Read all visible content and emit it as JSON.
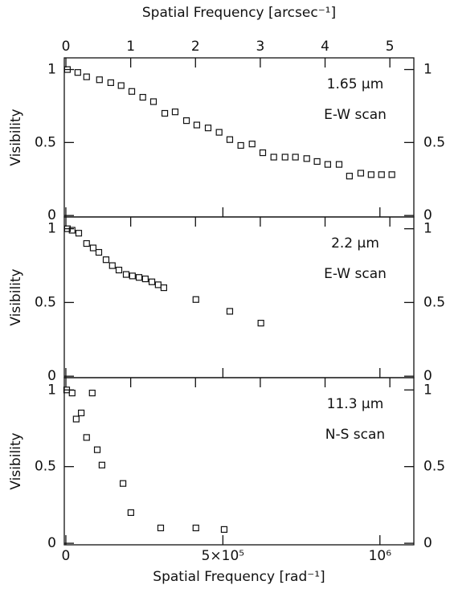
{
  "chart_data": [
    {
      "type": "scatter",
      "y_label": "Visibility",
      "annotations": [
        "1.65 μm",
        "E-W scan"
      ],
      "x2_label": "Spatial Frequency [arcsec⁻¹]",
      "x2lim": [
        -0.025,
        5.37
      ],
      "x2ticks": [
        0,
        1,
        2,
        3,
        4,
        5
      ],
      "xlim": [
        -5000,
        1108000
      ],
      "ylim": [
        -0.01,
        1.08
      ],
      "yticks": [
        0,
        0.5,
        1
      ],
      "y2lim": [
        -0.01,
        1.08
      ],
      "y2ticks": [
        0,
        0.5,
        1
      ],
      "color": "#111",
      "x": [
        5000,
        38000,
        66000,
        107000,
        143000,
        176000,
        210000,
        245000,
        279000,
        315000,
        348000,
        384000,
        417000,
        453000,
        488000,
        522000,
        557000,
        593000,
        627000,
        662000,
        698000,
        731000,
        767000,
        800000,
        834000,
        870000,
        903000,
        939000,
        972000,
        1005000,
        1038000
      ],
      "y": [
        1.0,
        0.98,
        0.95,
        0.93,
        0.91,
        0.89,
        0.85,
        0.81,
        0.78,
        0.7,
        0.71,
        0.65,
        0.62,
        0.6,
        0.57,
        0.52,
        0.48,
        0.49,
        0.43,
        0.4,
        0.4,
        0.4,
        0.39,
        0.37,
        0.35,
        0.35,
        0.27,
        0.29,
        0.28,
        0.28,
        0.28
      ]
    },
    {
      "type": "scatter",
      "y_label": "Visibility",
      "annotations": [
        "2.2 μm",
        "E-W scan"
      ],
      "xlim": [
        -5000,
        1108000
      ],
      "ylim": [
        -0.01,
        1.08
      ],
      "yticks": [
        0,
        0.5,
        1
      ],
      "y2lim": [
        -0.01,
        1.08
      ],
      "y2ticks": [
        0,
        0.5,
        1
      ],
      "color": "#111",
      "x": [
        5000,
        20000,
        41000,
        66000,
        87000,
        105000,
        128000,
        148000,
        169000,
        192000,
        212000,
        233000,
        253000,
        274000,
        294000,
        312000,
        414000,
        522000,
        621000
      ],
      "y": [
        1.0,
        0.99,
        0.97,
        0.9,
        0.87,
        0.84,
        0.79,
        0.75,
        0.72,
        0.69,
        0.68,
        0.67,
        0.66,
        0.64,
        0.62,
        0.6,
        0.52,
        0.44,
        0.36
      ]
    },
    {
      "type": "scatter",
      "y_label": "Visibility",
      "annotations": [
        "11.3 μm",
        "N-S scan"
      ],
      "x_label": "Spatial Frequency [rad⁻¹]",
      "xlim": [
        -5000,
        1108000
      ],
      "xticks": [
        0,
        {
          "value": 500000,
          "label": "5×10⁵"
        },
        {
          "value": 1000000,
          "label": "10⁶"
        }
      ],
      "ylim": [
        -0.01,
        1.08
      ],
      "yticks": [
        0,
        0.5,
        1
      ],
      "y2lim": [
        -0.01,
        1.08
      ],
      "y2ticks": [
        0,
        0.5,
        1
      ],
      "color": "#111",
      "x": [
        2600,
        20000,
        33000,
        49000,
        66000,
        84000,
        100000,
        115000,
        182000,
        207000,
        302000,
        414000,
        504000
      ],
      "y": [
        1.0,
        0.98,
        0.81,
        0.85,
        0.69,
        0.98,
        0.61,
        0.51,
        0.39,
        0.2,
        0.1,
        0.1,
        0.09
      ]
    }
  ]
}
